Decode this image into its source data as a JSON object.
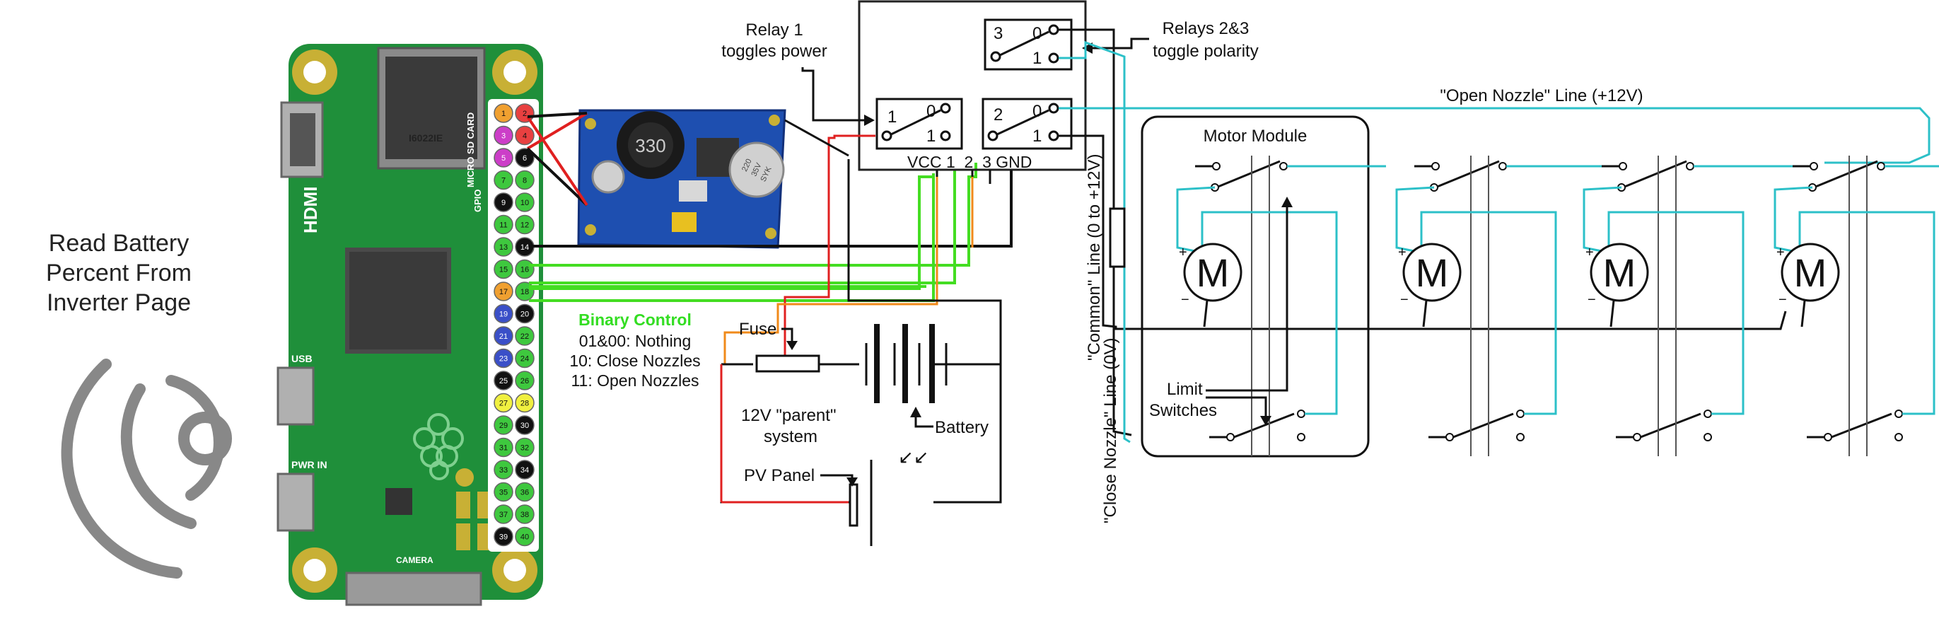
{
  "read_battery_label": [
    "Read Battery",
    "Percent From",
    "Inverter Page"
  ],
  "relay1_note": [
    "Relay 1",
    "toggles power"
  ],
  "relays23_note": [
    "Relays 2&3",
    "toggle polarity"
  ],
  "open_nozzle_line": "\"Open Nozzle\" Line (+12V)",
  "common_line": "\"Common\" Line (0 to +12V)",
  "close_nozzle_line": "\"Close Nozzle\" Line (0V)",
  "motor_module_label": "Motor Module",
  "motor_letter": "M",
  "motor_plus": "+",
  "motor_minus": "−",
  "limit_switches_label": [
    "Limit",
    "Switches"
  ],
  "relay_board": {
    "relay1": {
      "number": "1",
      "contact_0": "0",
      "contact_1": "1"
    },
    "relay2": {
      "number": "2",
      "contact_0": "0",
      "contact_1": "1"
    },
    "relay3": {
      "number": "3",
      "contact_0": "0",
      "contact_1": "1"
    },
    "pins_label": "VCC 1  2  3 GND"
  },
  "binary_control": {
    "title": "Binary Control",
    "lines": [
      "01&00: Nothing",
      "10: Close Nozzles",
      "11: Open Nozzles"
    ]
  },
  "parent_system": {
    "fuse_label": "Fuse",
    "system_label": [
      "12V \"parent\"",
      "system"
    ],
    "battery_label": "Battery",
    "pv_label": "PV Panel",
    "light_arrows": "↙↙"
  },
  "buck_converter": {
    "inductor_label": "330",
    "capacitor_label": [
      "220",
      "35V",
      "SYK"
    ]
  },
  "pi_board": {
    "silkscreen": [
      "HDMI",
      "MICRO SD CARD",
      "USB",
      "PWR IN",
      "CAMERA",
      "GPIO"
    ],
    "chip_text": "I6022IE",
    "gpio_left": [
      "1",
      "3",
      "5",
      "7",
      "9",
      "11",
      "13",
      "15",
      "17",
      "19",
      "21",
      "23",
      "25",
      "27",
      "29",
      "31",
      "33",
      "35",
      "37",
      "39"
    ],
    "gpio_right": [
      "2",
      "4",
      "6",
      "8",
      "10",
      "12",
      "14",
      "16",
      "18",
      "20",
      "22",
      "24",
      "26",
      "28",
      "30",
      "32",
      "34",
      "36",
      "38",
      "40"
    ],
    "gpio_left_colors": [
      "#f0a030",
      "#cc3ec8",
      "#cc3ec8",
      "#3ec83e",
      "#111111",
      "#3ec83e",
      "#3ec83e",
      "#3ec83e",
      "#f0a030",
      "#3a4fc8",
      "#3a4fc8",
      "#3a4fc8",
      "#111111",
      "#f0f040",
      "#3ec83e",
      "#3ec83e",
      "#3ec83e",
      "#3ec83e",
      "#3ec83e",
      "#111111"
    ],
    "gpio_right_colors": [
      "#e84040",
      "#e84040",
      "#111111",
      "#3ec83e",
      "#3ec83e",
      "#3ec83e",
      "#111111",
      "#3ec83e",
      "#3ec83e",
      "#111111",
      "#3ec83e",
      "#3ec83e",
      "#3ec83e",
      "#f0f040",
      "#111111",
      "#3ec83e",
      "#111111",
      "#3ec83e",
      "#3ec83e",
      "#3ec83e"
    ]
  },
  "colors": {
    "board_green": "#1f8f3a",
    "wire_red": "#e02020",
    "wire_orange": "#f08a1a",
    "wire_green": "#44dd22",
    "wire_cyan": "#2cc0c8",
    "binary_title": "#33dd22",
    "module_blue": "#1f4fb0"
  }
}
